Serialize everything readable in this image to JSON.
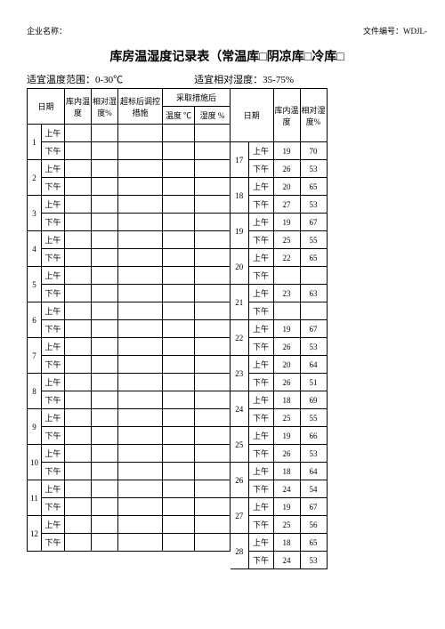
{
  "header": {
    "company_label": "企业名称：",
    "doc_code_label": "文件编号：",
    "doc_code_value": "WDJL-"
  },
  "title": "库房温湿度记录表（常温库□阴凉库□冷库□",
  "range": {
    "temp_label": "适宜温度范围：",
    "temp_value": "0-30℃",
    "humidity_label": "适宜相对湿度：",
    "humidity_value": "35-75%"
  },
  "columns": {
    "date": "日期",
    "indoor_temp": "库内温度",
    "rel_humidity": "相对湿度%",
    "measures": "超标后调控措施",
    "after": "采取措施后",
    "temp_c": "温度 ℃",
    "humidity_pct": "湿度   %",
    "am": "上午",
    "pm": "下午"
  },
  "left_rows": [
    {
      "day": "1"
    },
    {
      "day": "2"
    },
    {
      "day": "3"
    },
    {
      "day": "4"
    },
    {
      "day": "5"
    },
    {
      "day": "6"
    },
    {
      "day": "7"
    },
    {
      "day": "8"
    },
    {
      "day": "9"
    },
    {
      "day": "10"
    },
    {
      "day": "11"
    },
    {
      "day": "12"
    }
  ],
  "right_rows": [
    {
      "day": "17",
      "am_t": "19",
      "am_h": "70",
      "pm_t": "26",
      "pm_h": "53"
    },
    {
      "day": "18",
      "am_t": "20",
      "am_h": "65",
      "pm_t": "27",
      "pm_h": "53"
    },
    {
      "day": "19",
      "am_t": "19",
      "am_h": "67",
      "pm_t": "25",
      "pm_h": "55"
    },
    {
      "day": "20",
      "am_t": "22",
      "am_h": "65",
      "pm_t": "",
      "pm_h": ""
    },
    {
      "day": "21",
      "am_t": "23",
      "am_h": "63",
      "pm_t": "",
      "pm_h": ""
    },
    {
      "day": "22",
      "am_t": "19",
      "am_h": "67",
      "pm_t": "26",
      "pm_h": "53"
    },
    {
      "day": "23",
      "am_t": "20",
      "am_h": "64",
      "pm_t": "26",
      "pm_h": "51"
    },
    {
      "day": "24",
      "am_t": "18",
      "am_h": "69",
      "pm_t": "25",
      "pm_h": "55"
    },
    {
      "day": "25",
      "am_t": "19",
      "am_h": "66",
      "pm_t": "26",
      "pm_h": "53"
    },
    {
      "day": "26",
      "am_t": "18",
      "am_h": "64",
      "pm_t": "24",
      "pm_h": "54"
    },
    {
      "day": "27",
      "am_t": "19",
      "am_h": "67",
      "pm_t": "25",
      "pm_h": "56"
    },
    {
      "day": "28",
      "am_t": "18",
      "am_h": "65",
      "pm_t": "24",
      "pm_h": "53"
    }
  ],
  "colors": {
    "text": "#000000",
    "border": "#000000",
    "bg": "#ffffff"
  }
}
